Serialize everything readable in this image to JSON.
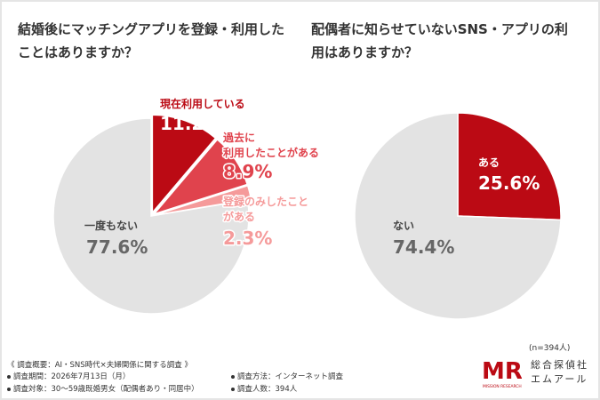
{
  "chart_data": [
    {
      "type": "pie",
      "title": "結婚後にマッチングアプリを登録・利用したことはありますか？",
      "slices": [
        {
          "label": "現在利用している",
          "value": 11.2,
          "display": "11.2%",
          "color": "#bb0a14"
        },
        {
          "label": "過去に利用したことがある",
          "value": 8.9,
          "display": "8.9%",
          "color": "#e0434d"
        },
        {
          "label": "登録のみしたことがある",
          "value": 2.3,
          "display": "2.3%",
          "color": "#f59a9a"
        },
        {
          "label": "一度もない",
          "value": 77.6,
          "display": "77.6%",
          "color": "#e3e3e3"
        }
      ]
    },
    {
      "type": "pie",
      "title": "配偶者に知らせていないSNS・アプリの利用はありますか？",
      "slices": [
        {
          "label": "ある",
          "value": 25.6,
          "display": "25.6%",
          "color": "#bb0a14"
        },
        {
          "label": "ない",
          "value": 74.4,
          "display": "74.4%",
          "color": "#e3e3e3"
        }
      ]
    }
  ],
  "footer": {
    "overview": "《 調査概要：AI・SNS時代×夫婦関係に関する調査 》",
    "period": "調査期間：2026年7月13日（月）",
    "method": "調査方法：インターネット調査",
    "target": "調査対象：30～59歳既婚男女（配偶者あり・同居中）",
    "count": "調査人数：394人",
    "n_note": "(n=394人)"
  },
  "logo": {
    "mark": "MR",
    "tagline": "MISSION RESEARCH",
    "company_line1": "総合探偵社",
    "company_line2": "エムアール"
  }
}
